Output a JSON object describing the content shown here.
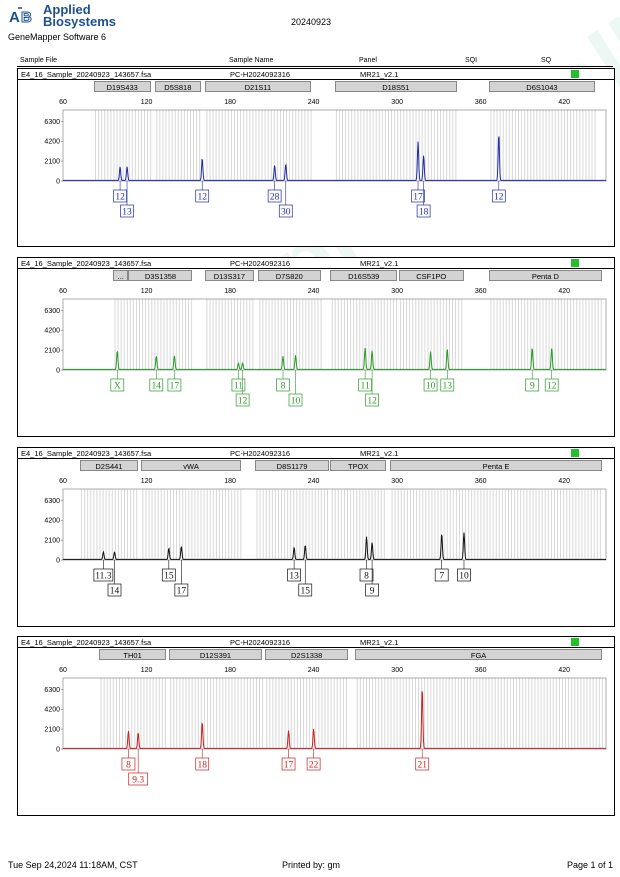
{
  "header": {
    "brand_line1": "Applied",
    "brand_line2": "Biosystems",
    "software": "GeneMapper Software 6",
    "date": "20240923"
  },
  "columns": {
    "sample_file": "Sample File",
    "sample_name": "Sample Name",
    "panel": "Panel",
    "sqi": "SQI",
    "sq": "SQ"
  },
  "colors": {
    "blue": "#1f2aa8",
    "green": "#2a9a2a",
    "black": "#111111",
    "red": "#cc1f1f",
    "quality_ok": "#22c02a"
  },
  "watermark": "www.probe-cell.com",
  "footer": {
    "timestamp": "Tue Sep 24,2024 11:18AM, CST",
    "printed_by": "Printed by: gm",
    "page": "Page 1 of 1"
  },
  "chart_data": [
    {
      "type": "line",
      "dye": "blue",
      "file": "E4_16_Sample_20240923_143657.fsa",
      "sample": "PC-H2024092316",
      "panel": "MR21_v2.1",
      "x_ticks": [
        "60",
        "120",
        "180",
        "240",
        "300",
        "360",
        "420"
      ],
      "y_ticks": [
        "6300",
        "4200",
        "2100",
        "0"
      ],
      "xlim": [
        60,
        450
      ],
      "ylim": [
        0,
        7500
      ],
      "markers": [
        {
          "name": "D19S433",
          "start": 82,
          "end": 123
        },
        {
          "name": "D5S818",
          "start": 126,
          "end": 159
        },
        {
          "name": "D21S11",
          "start": 162,
          "end": 238
        },
        {
          "name": "D18S51",
          "start": 255,
          "end": 343
        },
        {
          "name": "D6S1043",
          "start": 366,
          "end": 442
        }
      ],
      "peaks": [
        {
          "x": 101,
          "h": 1450,
          "label": "12",
          "row": 0
        },
        {
          "x": 106,
          "h": 1450,
          "label": "13",
          "row": 1
        },
        {
          "x": 160,
          "h": 2350,
          "label": "12",
          "row": 0
        },
        {
          "x": 212,
          "h": 1600,
          "label": "28",
          "row": 0
        },
        {
          "x": 220,
          "h": 1750,
          "label": "30",
          "row": 1
        },
        {
          "x": 315,
          "h": 4100,
          "label": "17",
          "row": 0
        },
        {
          "x": 319,
          "h": 2650,
          "label": "18",
          "row": 1
        },
        {
          "x": 373,
          "h": 4900,
          "label": "12",
          "row": 0
        }
      ]
    },
    {
      "type": "line",
      "dye": "green",
      "file": "E4_16_Sample_20240923_143657.fsa",
      "sample": "PC-H2024092316",
      "panel": "MR21_v2.1",
      "x_ticks": [
        "60",
        "120",
        "180",
        "240",
        "300",
        "360",
        "420"
      ],
      "y_ticks": [
        "6300",
        "4200",
        "2100",
        "0"
      ],
      "xlim": [
        60,
        450
      ],
      "ylim": [
        0,
        7500
      ],
      "markers": [
        {
          "name": "...",
          "start": 96,
          "end": 107
        },
        {
          "name": "D3S1358",
          "start": 107,
          "end": 153
        },
        {
          "name": "D13S317",
          "start": 162,
          "end": 197
        },
        {
          "name": "D7S820",
          "start": 200,
          "end": 245
        },
        {
          "name": "D16S539",
          "start": 252,
          "end": 300
        },
        {
          "name": "CSF1PO",
          "start": 301,
          "end": 348
        },
        {
          "name": "Penta D",
          "start": 366,
          "end": 447
        }
      ],
      "peaks": [
        {
          "x": 99,
          "h": 2000,
          "label": "X",
          "row": 0
        },
        {
          "x": 127,
          "h": 1400,
          "label": "14",
          "row": 0
        },
        {
          "x": 140,
          "h": 1450,
          "label": "17",
          "row": 0
        },
        {
          "x": 186,
          "h": 650,
          "label": "11",
          "row": 0
        },
        {
          "x": 189,
          "h": 650,
          "label": "12",
          "row": 1
        },
        {
          "x": 218,
          "h": 1400,
          "label": "8",
          "row": 0
        },
        {
          "x": 227,
          "h": 1500,
          "label": "10",
          "row": 1
        },
        {
          "x": 277,
          "h": 2300,
          "label": "11",
          "row": 0
        },
        {
          "x": 282,
          "h": 2000,
          "label": "12",
          "row": 1
        },
        {
          "x": 324,
          "h": 1900,
          "label": "10",
          "row": 0
        },
        {
          "x": 336,
          "h": 2150,
          "label": "13",
          "row": 0
        },
        {
          "x": 397,
          "h": 2300,
          "label": "9",
          "row": 0
        },
        {
          "x": 411,
          "h": 2300,
          "label": "12",
          "row": 0
        }
      ]
    },
    {
      "type": "line",
      "dye": "black",
      "file": "E4_16_Sample_20240923_143657.fsa",
      "sample": "PC-H2024092316",
      "panel": "MR21_v2.1",
      "x_ticks": [
        "60",
        "120",
        "180",
        "240",
        "300",
        "360",
        "420"
      ],
      "y_ticks": [
        "6300",
        "4200",
        "2100",
        "0"
      ],
      "xlim": [
        60,
        450
      ],
      "ylim": [
        0,
        7500
      ],
      "markers": [
        {
          "name": "D2S441",
          "start": 72,
          "end": 114
        },
        {
          "name": "vWA",
          "start": 116,
          "end": 188
        },
        {
          "name": "D8S1179",
          "start": 198,
          "end": 251
        },
        {
          "name": "TPOX",
          "start": 252,
          "end": 292
        },
        {
          "name": "Penta E",
          "start": 295,
          "end": 447
        }
      ],
      "peaks": [
        {
          "x": 89,
          "h": 800,
          "label": "11.3",
          "row": 0
        },
        {
          "x": 97,
          "h": 800,
          "label": "14",
          "row": 1
        },
        {
          "x": 136,
          "h": 1200,
          "label": "15",
          "row": 0
        },
        {
          "x": 145,
          "h": 1400,
          "label": "17",
          "row": 1
        },
        {
          "x": 226,
          "h": 1300,
          "label": "13",
          "row": 0
        },
        {
          "x": 234,
          "h": 1500,
          "label": "15",
          "row": 1
        },
        {
          "x": 278,
          "h": 2400,
          "label": "8",
          "row": 0
        },
        {
          "x": 282,
          "h": 1800,
          "label": "9",
          "row": 1
        },
        {
          "x": 332,
          "h": 2750,
          "label": "7",
          "row": 0
        },
        {
          "x": 348,
          "h": 2850,
          "label": "10",
          "row": 0
        }
      ]
    },
    {
      "type": "line",
      "dye": "red",
      "file": "E4_16_Sample_20240923_143657.fsa",
      "sample": "PC-H2024092316",
      "panel": "MR21_v2.1",
      "x_ticks": [
        "60",
        "120",
        "180",
        "240",
        "300",
        "360",
        "420"
      ],
      "y_ticks": [
        "6300",
        "4200",
        "2100",
        "0"
      ],
      "xlim": [
        60,
        450
      ],
      "ylim": [
        0,
        7500
      ],
      "markers": [
        {
          "name": "TH01",
          "start": 86,
          "end": 134
        },
        {
          "name": "D12S391",
          "start": 136,
          "end": 203
        },
        {
          "name": "D2S1338",
          "start": 205,
          "end": 265
        },
        {
          "name": "FGA",
          "start": 270,
          "end": 447
        }
      ],
      "peaks": [
        {
          "x": 107,
          "h": 1850,
          "label": "8",
          "row": 0
        },
        {
          "x": 114,
          "h": 1700,
          "label": "9.3",
          "row": 1
        },
        {
          "x": 160,
          "h": 2800,
          "label": "18",
          "row": 0
        },
        {
          "x": 222,
          "h": 1900,
          "label": "17",
          "row": 0
        },
        {
          "x": 240,
          "h": 2100,
          "label": "22",
          "row": 0
        },
        {
          "x": 318,
          "h": 6400,
          "label": "21",
          "row": 0
        }
      ]
    }
  ]
}
